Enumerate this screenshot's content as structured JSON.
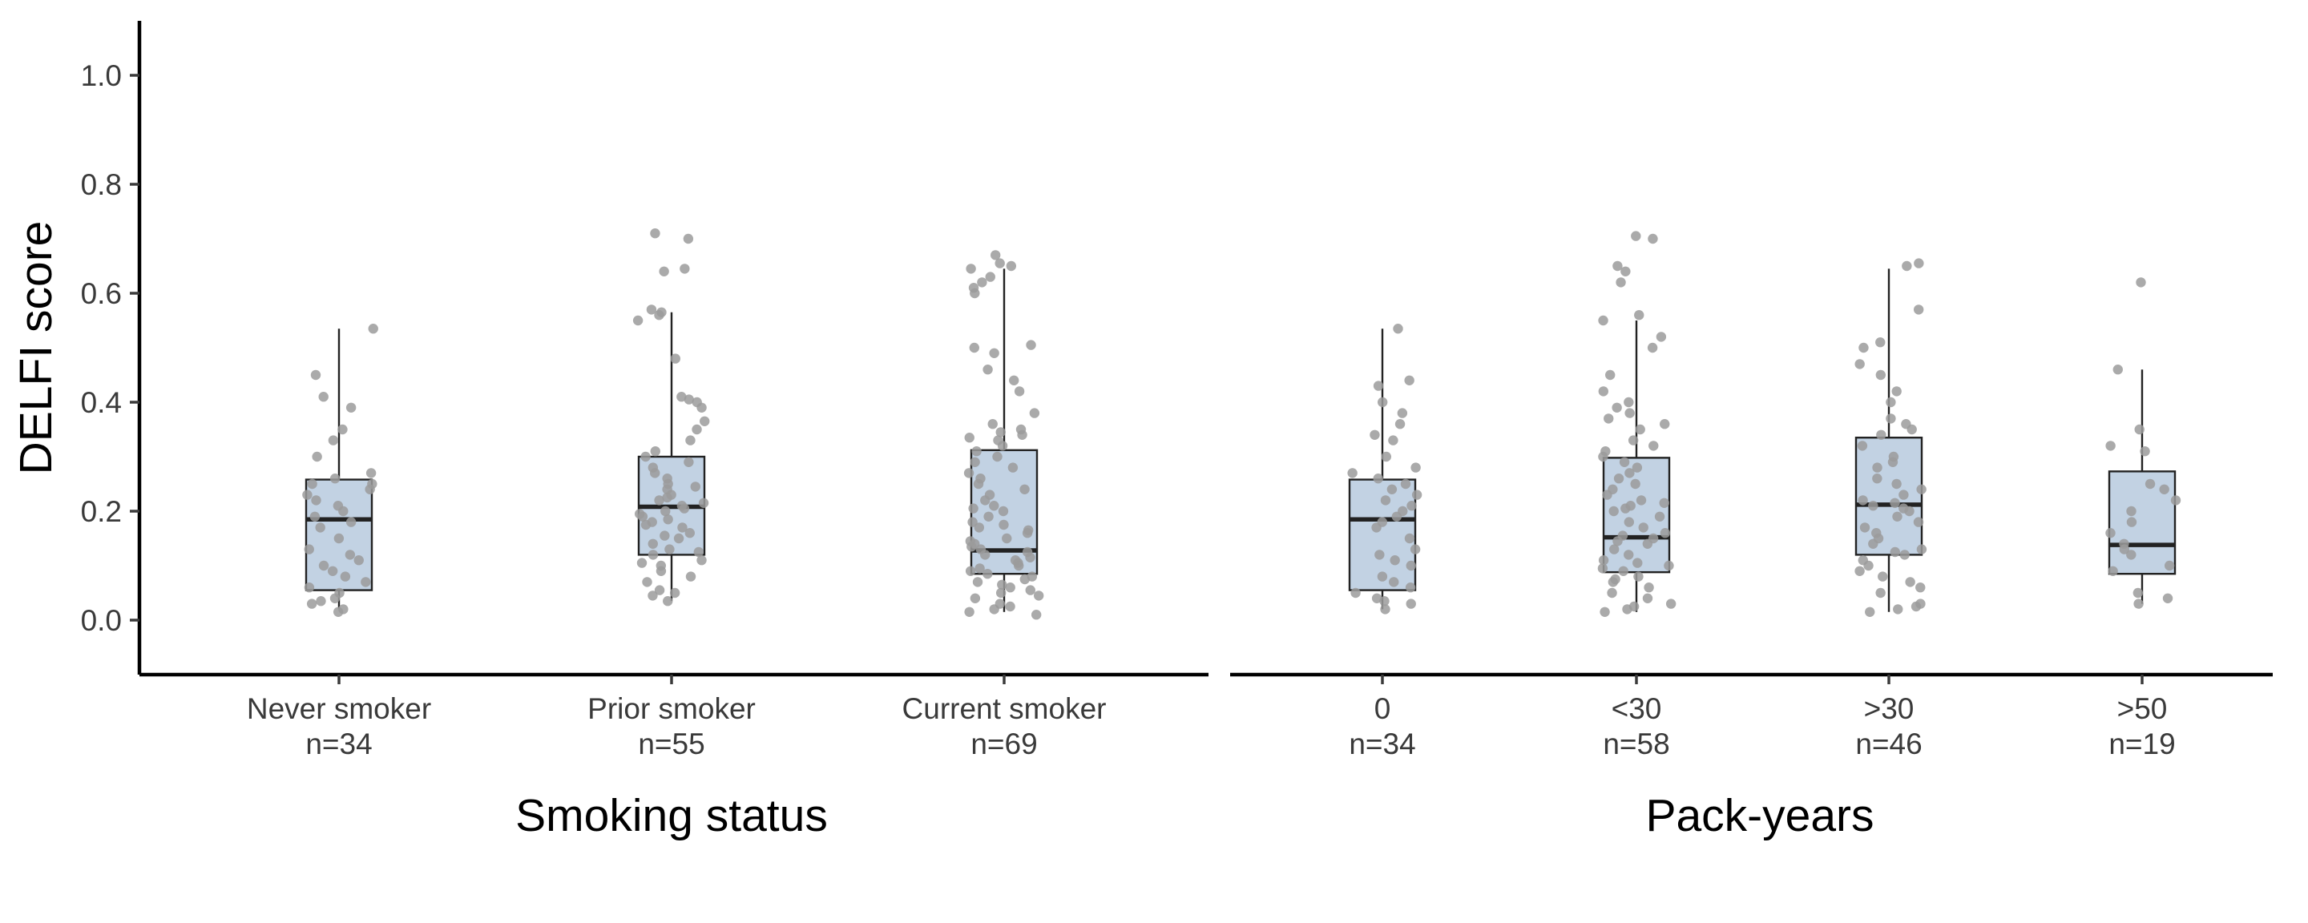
{
  "chart_data": {
    "type": "boxplot",
    "ylabel": "DELFI score",
    "ylim": [
      -0.1,
      1.1
    ],
    "y_ticks": [
      "0.0",
      "0.2",
      "0.4",
      "0.6",
      "0.8",
      "1.0"
    ],
    "colors": {
      "box_fill": "#c2d2e3",
      "box_stroke": "#222222",
      "points": "#9b9b9b"
    },
    "grid": false,
    "panels": [
      {
        "xlabel": "Smoking status",
        "categories": [
          {
            "label": "Never smoker",
            "n_label": "n=34",
            "q1": 0.055,
            "median": 0.185,
            "q3": 0.258,
            "whisker_low": 0.02,
            "whisker_high": 0.535,
            "points": [
              0.015,
              0.02,
              0.03,
              0.035,
              0.04,
              0.05,
              0.06,
              0.07,
              0.08,
              0.09,
              0.1,
              0.11,
              0.12,
              0.13,
              0.15,
              0.17,
              0.18,
              0.19,
              0.2,
              0.21,
              0.22,
              0.23,
              0.24,
              0.25,
              0.25,
              0.26,
              0.27,
              0.3,
              0.33,
              0.35,
              0.39,
              0.41,
              0.45,
              0.535
            ]
          },
          {
            "label": "Prior smoker",
            "n_label": "n=55",
            "q1": 0.12,
            "median": 0.208,
            "q3": 0.3,
            "whisker_low": 0.035,
            "whisker_high": 0.565,
            "points": [
              0.035,
              0.045,
              0.05,
              0.055,
              0.07,
              0.08,
              0.09,
              0.1,
              0.105,
              0.11,
              0.12,
              0.125,
              0.13,
              0.14,
              0.15,
              0.155,
              0.16,
              0.17,
              0.175,
              0.18,
              0.185,
              0.19,
              0.195,
              0.2,
              0.205,
              0.21,
              0.215,
              0.22,
              0.225,
              0.23,
              0.24,
              0.245,
              0.25,
              0.26,
              0.27,
              0.28,
              0.29,
              0.3,
              0.31,
              0.33,
              0.35,
              0.365,
              0.39,
              0.4,
              0.405,
              0.41,
              0.48,
              0.55,
              0.56,
              0.565,
              0.57,
              0.64,
              0.645,
              0.7,
              0.71
            ]
          },
          {
            "label": "Current smoker",
            "n_label": "n=69",
            "q1": 0.085,
            "median": 0.128,
            "q3": 0.312,
            "whisker_low": 0.015,
            "whisker_high": 0.645,
            "points": [
              0.01,
              0.015,
              0.02,
              0.025,
              0.03,
              0.04,
              0.045,
              0.05,
              0.055,
              0.06,
              0.065,
              0.07,
              0.075,
              0.08,
              0.085,
              0.09,
              0.095,
              0.1,
              0.105,
              0.11,
              0.115,
              0.12,
              0.125,
              0.13,
              0.135,
              0.14,
              0.145,
              0.15,
              0.16,
              0.165,
              0.17,
              0.175,
              0.18,
              0.19,
              0.2,
              0.205,
              0.21,
              0.22,
              0.23,
              0.24,
              0.25,
              0.26,
              0.27,
              0.28,
              0.29,
              0.3,
              0.31,
              0.32,
              0.33,
              0.335,
              0.34,
              0.345,
              0.35,
              0.36,
              0.38,
              0.42,
              0.44,
              0.46,
              0.49,
              0.5,
              0.505,
              0.6,
              0.61,
              0.62,
              0.63,
              0.645,
              0.65,
              0.655,
              0.67
            ]
          }
        ]
      },
      {
        "xlabel": "Pack-years",
        "categories": [
          {
            "label": "0",
            "n_label": "n=34",
            "q1": 0.055,
            "median": 0.185,
            "q3": 0.258,
            "whisker_low": 0.02,
            "whisker_high": 0.535,
            "points": [
              0.02,
              0.03,
              0.035,
              0.04,
              0.05,
              0.06,
              0.07,
              0.08,
              0.1,
              0.11,
              0.12,
              0.13,
              0.15,
              0.17,
              0.18,
              0.19,
              0.2,
              0.21,
              0.22,
              0.23,
              0.24,
              0.25,
              0.26,
              0.27,
              0.28,
              0.3,
              0.33,
              0.34,
              0.36,
              0.38,
              0.4,
              0.43,
              0.44,
              0.535
            ]
          },
          {
            "label": "<30",
            "n_label": "n=58",
            "q1": 0.088,
            "median": 0.152,
            "q3": 0.298,
            "whisker_low": 0.015,
            "whisker_high": 0.55,
            "points": [
              0.015,
              0.02,
              0.025,
              0.03,
              0.04,
              0.05,
              0.06,
              0.07,
              0.075,
              0.08,
              0.09,
              0.095,
              0.1,
              0.105,
              0.11,
              0.12,
              0.13,
              0.14,
              0.145,
              0.15,
              0.155,
              0.16,
              0.17,
              0.18,
              0.19,
              0.2,
              0.205,
              0.21,
              0.215,
              0.22,
              0.23,
              0.24,
              0.25,
              0.26,
              0.27,
              0.28,
              0.29,
              0.3,
              0.31,
              0.32,
              0.33,
              0.35,
              0.36,
              0.37,
              0.38,
              0.39,
              0.4,
              0.42,
              0.45,
              0.5,
              0.52,
              0.55,
              0.56,
              0.62,
              0.64,
              0.65,
              0.7,
              0.705
            ]
          },
          {
            "label": ">30",
            "n_label": "n=46",
            "q1": 0.12,
            "median": 0.212,
            "q3": 0.335,
            "whisker_low": 0.015,
            "whisker_high": 0.645,
            "points": [
              0.015,
              0.02,
              0.025,
              0.03,
              0.05,
              0.06,
              0.07,
              0.08,
              0.09,
              0.1,
              0.11,
              0.12,
              0.125,
              0.13,
              0.14,
              0.15,
              0.16,
              0.17,
              0.18,
              0.19,
              0.2,
              0.205,
              0.21,
              0.215,
              0.22,
              0.23,
              0.24,
              0.25,
              0.26,
              0.28,
              0.29,
              0.3,
              0.32,
              0.34,
              0.35,
              0.36,
              0.37,
              0.4,
              0.42,
              0.45,
              0.47,
              0.5,
              0.51,
              0.57,
              0.65,
              0.655
            ]
          },
          {
            "label": ">50",
            "n_label": "n=19",
            "q1": 0.085,
            "median": 0.138,
            "q3": 0.273,
            "whisker_low": 0.03,
            "whisker_high": 0.46,
            "points": [
              0.03,
              0.04,
              0.05,
              0.09,
              0.1,
              0.12,
              0.13,
              0.14,
              0.16,
              0.18,
              0.2,
              0.22,
              0.24,
              0.25,
              0.31,
              0.32,
              0.35,
              0.46,
              0.62
            ]
          }
        ]
      }
    ]
  }
}
